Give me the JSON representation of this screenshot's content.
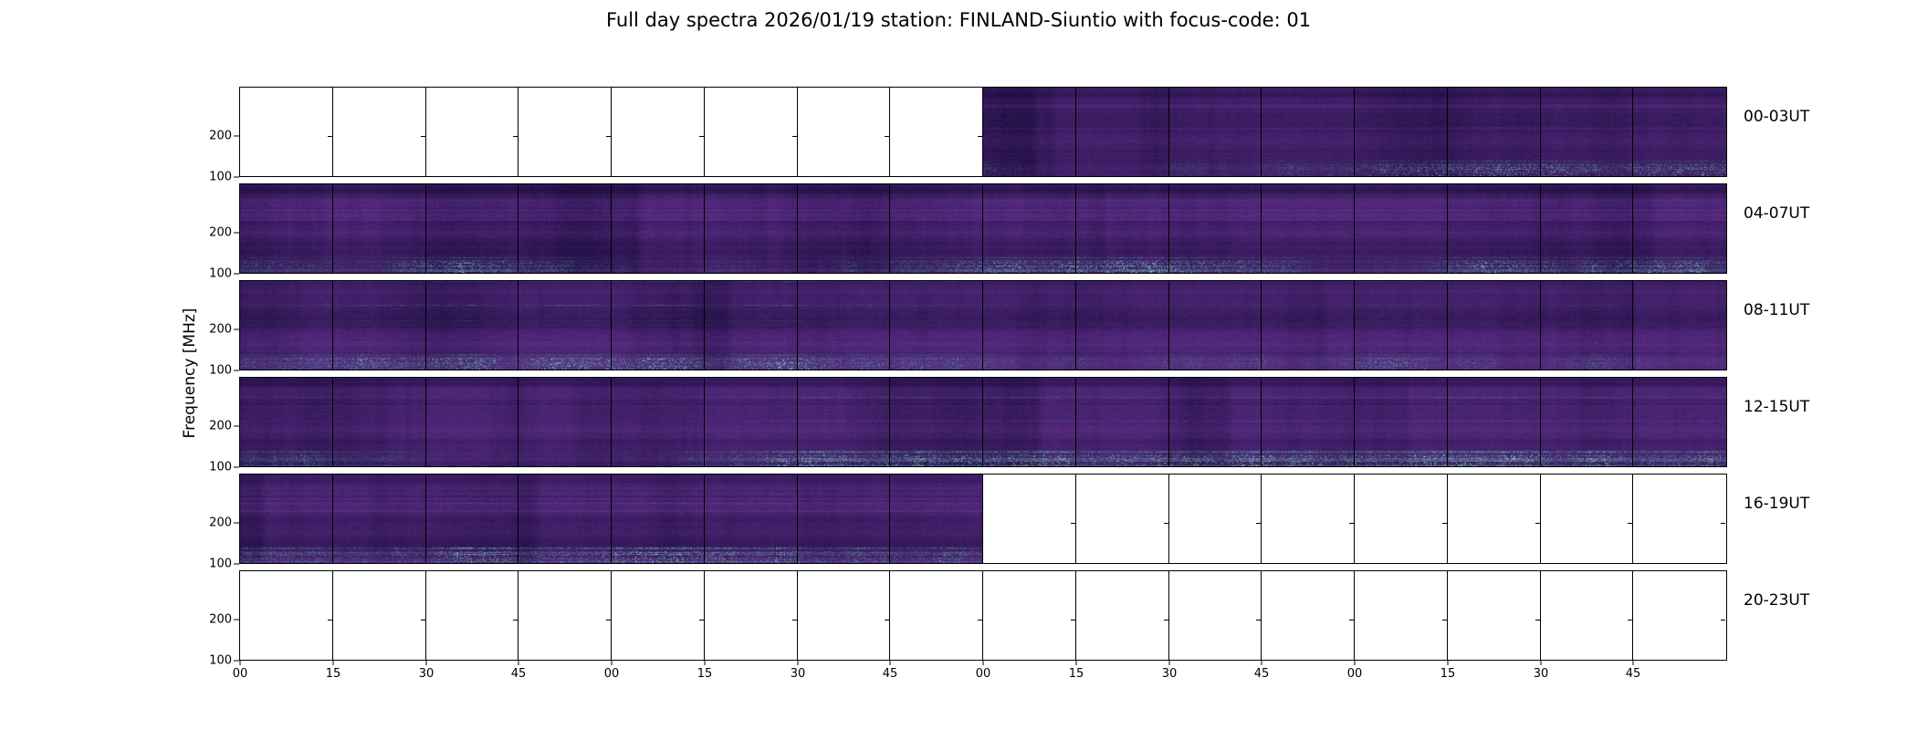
{
  "figure": {
    "title": "Full day spectra 2026/01/19 station: FINLAND-Siuntio with focus-code: 01",
    "ylabel": "Frequency [MHz]"
  },
  "colors": {
    "background": "#ffffff",
    "axis": "#000000",
    "spec_dark": "#160a38",
    "spec_bright": "#753aa1",
    "rfi_teal": "#287d7d",
    "rfi_cyan": "#a0ebe1"
  },
  "chart_data": {
    "type": "heatmap",
    "title": "Full day spectra 2026/01/19 station: FINLAND-Siuntio with focus-code: 01",
    "date": "2026/01/19",
    "station": "FINLAND-Siuntio",
    "focus_code": "01",
    "ylabel": "Frequency [MHz]",
    "y_tick_labels": [
      "200",
      "100"
    ],
    "y_axis_range_mhz": [
      100,
      310
    ],
    "x_tick_labels": [
      "00",
      "15",
      "30",
      "45",
      "00",
      "15",
      "30",
      "45",
      "00",
      "15",
      "30",
      "45",
      "00",
      "15",
      "30",
      "45"
    ],
    "minutes_per_segment": 15,
    "segments_per_row": 16,
    "hours_per_row": 4,
    "rows": [
      {
        "label": "00-03UT",
        "data_start_segment": 8,
        "data_end_segment": 16,
        "data_coverage": "02:00-04:00 UT"
      },
      {
        "label": "04-07UT",
        "data_start_segment": 0,
        "data_end_segment": 16,
        "data_coverage": "04:00-08:00 UT"
      },
      {
        "label": "08-11UT",
        "data_start_segment": 0,
        "data_end_segment": 16,
        "data_coverage": "08:00-12:00 UT"
      },
      {
        "label": "12-15UT",
        "data_start_segment": 0,
        "data_end_segment": 16,
        "data_coverage": "12:00-16:00 UT"
      },
      {
        "label": "16-19UT",
        "data_start_segment": 0,
        "data_end_segment": 8,
        "data_coverage": "16:00-18:00 UT"
      },
      {
        "label": "20-23UT",
        "data_start_segment": 0,
        "data_end_segment": 0,
        "data_coverage": "none"
      }
    ],
    "legend": "none",
    "grid": "segment boundaries every 15 minutes"
  }
}
